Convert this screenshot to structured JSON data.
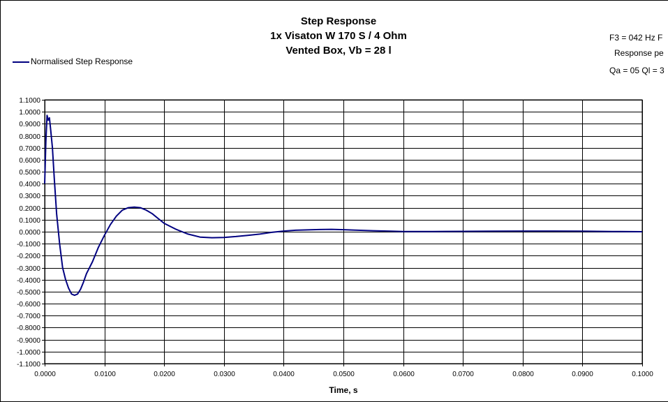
{
  "header": {
    "title": "Step Response",
    "subtitle1": "1x Visaton W 170 S / 4 Ohm",
    "subtitle2": "Vented Box, Vb = 28 l"
  },
  "info": {
    "line1": "F3 = 042 Hz   F",
    "line2": "Response pe",
    "line3": "Qa = 05   Ql = 3"
  },
  "colors": {
    "series": "#000080",
    "grid": "#000000",
    "background": "#ffffff"
  },
  "chart_data": {
    "type": "line",
    "title": "Step Response",
    "subtitle": [
      "1x Visaton W 170 S / 4 Ohm",
      "Vented Box, Vb = 28 l"
    ],
    "xlabel": "Time, s",
    "ylabel": "",
    "xlim": [
      0,
      0.1
    ],
    "ylim": [
      -1.1,
      1.1
    ],
    "x_ticks": [
      "0.0000",
      "0.0100",
      "0.0200",
      "0.0300",
      "0.0400",
      "0.0500",
      "0.0600",
      "0.0700",
      "0.0800",
      "0.0900",
      "0.1000"
    ],
    "y_ticks": [
      "1.1000",
      "1.0000",
      "0.9000",
      "0.8000",
      "0.7000",
      "0.6000",
      "0.5000",
      "0.4000",
      "0.3000",
      "0.2000",
      "0.1000",
      "0.0000",
      "-0.1000",
      "-0.2000",
      "-0.3000",
      "-0.4000",
      "-0.5000",
      "-0.6000",
      "-0.7000",
      "-0.8000",
      "-0.9000",
      "-1.0000",
      "-1.1000"
    ],
    "grid": true,
    "legend": "top-left",
    "series": [
      {
        "name": "Normalised Step Response",
        "x": [
          0,
          0.0002,
          0.0004,
          0.0006,
          0.0008,
          0.001,
          0.0013,
          0.0016,
          0.002,
          0.0025,
          0.003,
          0.0035,
          0.004,
          0.0045,
          0.005,
          0.0055,
          0.006,
          0.0065,
          0.007,
          0.008,
          0.009,
          0.01,
          0.011,
          0.012,
          0.013,
          0.014,
          0.015,
          0.016,
          0.017,
          0.018,
          0.019,
          0.02,
          0.022,
          0.024,
          0.026,
          0.028,
          0.03,
          0.032,
          0.034,
          0.036,
          0.038,
          0.04,
          0.042,
          0.044,
          0.046,
          0.048,
          0.05,
          0.052,
          0.055,
          0.058,
          0.06,
          0.065,
          0.07,
          0.075,
          0.08,
          0.085,
          0.09,
          0.095,
          0.1
        ],
        "y": [
          0.4,
          0.75,
          0.97,
          0.93,
          0.95,
          0.85,
          0.7,
          0.45,
          0.15,
          -0.1,
          -0.3,
          -0.4,
          -0.47,
          -0.52,
          -0.53,
          -0.52,
          -0.48,
          -0.42,
          -0.35,
          -0.25,
          -0.13,
          -0.03,
          0.06,
          0.13,
          0.18,
          0.2,
          0.205,
          0.2,
          0.18,
          0.15,
          0.11,
          0.07,
          0.02,
          -0.02,
          -0.045,
          -0.05,
          -0.048,
          -0.04,
          -0.03,
          -0.02,
          -0.005,
          0.005,
          0.012,
          0.015,
          0.018,
          0.02,
          0.017,
          0.013,
          0.008,
          0.004,
          0.002,
          0.002,
          0.003,
          0.004,
          0.005,
          0.005,
          0.004,
          0.002,
          0.0
        ]
      }
    ]
  }
}
